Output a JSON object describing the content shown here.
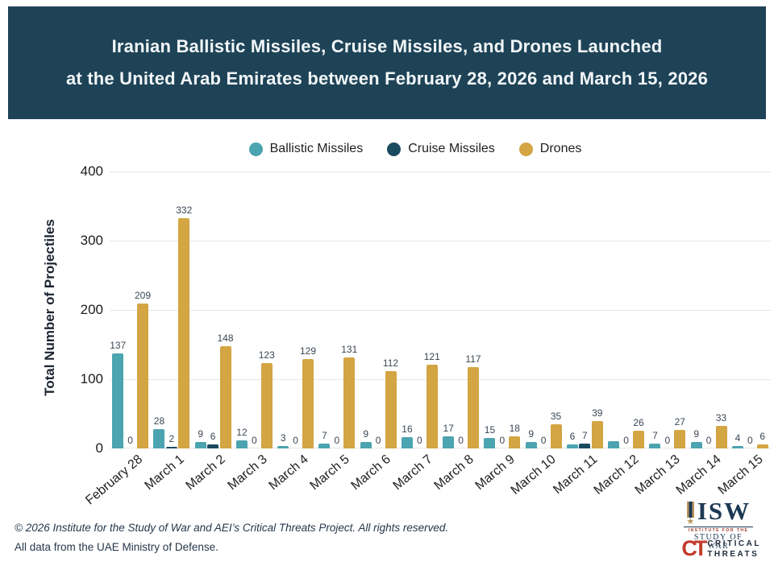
{
  "header": {
    "line1": "Iranian Ballistic Missiles, Cruise Missiles, and Drones Launched",
    "line2": "at the United Arab Emirates between February 28, 2026 and March 15, 2026",
    "bg_color": "#1E4357"
  },
  "chart_data": {
    "type": "bar",
    "title": "Iranian Ballistic Missiles, Cruise Missiles, and Drones Launched at the United Arab Emirates between February 28, 2026 and March 15, 2026",
    "ylabel": "Total Number of Projectiles",
    "xlabel": "",
    "ylim": [
      0,
      400
    ],
    "yticks": [
      0,
      100,
      200,
      300,
      400
    ],
    "grid": true,
    "legend_position": "top",
    "categories": [
      "February 28",
      "March 1",
      "March 2",
      "March 3",
      "March 4",
      "March 5",
      "March 6",
      "March 7",
      "March 8",
      "March 9",
      "March 10",
      "March 11",
      "March 12",
      "March 13",
      "March 14",
      "March 15"
    ],
    "series": [
      {
        "name": "Ballistic Missiles",
        "color": "#4BA4AF",
        "values": [
          137,
          28,
          9,
          12,
          3,
          7,
          9,
          16,
          17,
          15,
          9,
          6,
          10,
          7,
          9,
          4
        ],
        "labels": [
          "137",
          "28",
          "9",
          "12",
          "3",
          "7",
          "9",
          "16",
          "17",
          "15",
          "9",
          "6",
          "",
          "7",
          "9",
          "4"
        ]
      },
      {
        "name": "Cruise Missiles",
        "color": "#1A4A5F",
        "values": [
          0,
          2,
          6,
          0,
          0,
          0,
          0,
          0,
          0,
          0,
          0,
          7,
          0,
          0,
          0,
          0
        ],
        "labels": [
          "0",
          "2",
          "6",
          "0",
          "0",
          "0",
          "0",
          "0",
          "0",
          "0",
          "0",
          "7",
          "0",
          "0",
          "0",
          "0"
        ]
      },
      {
        "name": "Drones",
        "color": "#D3A543",
        "values": [
          209,
          332,
          148,
          123,
          129,
          131,
          112,
          121,
          117,
          18,
          35,
          39,
          26,
          27,
          33,
          6
        ],
        "labels": [
          "209",
          "332",
          "148",
          "123",
          "129",
          "131",
          "112",
          "121",
          "117",
          "18",
          "35",
          "39",
          "26",
          "27",
          "33",
          "6"
        ]
      }
    ]
  },
  "footer": {
    "line1": "© 2026 Institute for the Study of War and AEI’s Critical Threats Project. All rights reserved.",
    "line2": "All data from the UAE Ministry of Defense."
  },
  "logos": {
    "isw": {
      "acronym": "ISW",
      "sub_line1": "INSTITUTE FOR THE",
      "sub_line2": "STUDY OF WAR",
      "star": "★"
    },
    "ct": {
      "acronym": "CT",
      "line1": "CRITICAL",
      "line2": "THREATS"
    }
  }
}
